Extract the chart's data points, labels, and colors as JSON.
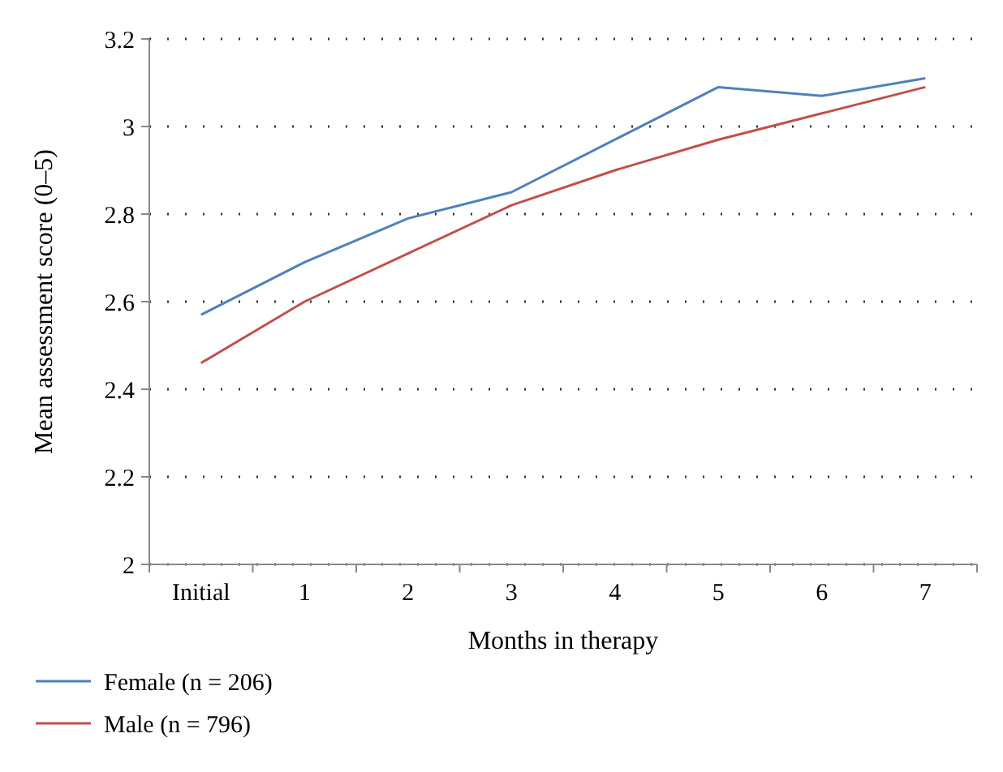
{
  "chart_data": {
    "type": "line",
    "xlabel": "Months in therapy",
    "ylabel": "Mean assessment score (0–5)",
    "categories": [
      "Initial",
      "1",
      "2",
      "3",
      "4",
      "5",
      "6",
      "7"
    ],
    "ylim": [
      2,
      3.2
    ],
    "yticks": [
      2,
      2.2,
      2.4,
      2.6,
      2.8,
      3,
      3.2
    ],
    "grid": "y",
    "legend": "bottom left",
    "marker": "none",
    "line_style": "solid",
    "series": [
      {
        "name": "Female (n = 206)",
        "color": "#4f81bd",
        "values": [
          2.57,
          2.69,
          2.79,
          2.85,
          2.97,
          3.09,
          3.07,
          3.11
        ]
      },
      {
        "name": "Male (n = 796)",
        "color": "#c0504d",
        "values": [
          2.46,
          2.6,
          2.71,
          2.82,
          2.9,
          2.97,
          3.03,
          3.09
        ]
      }
    ]
  }
}
